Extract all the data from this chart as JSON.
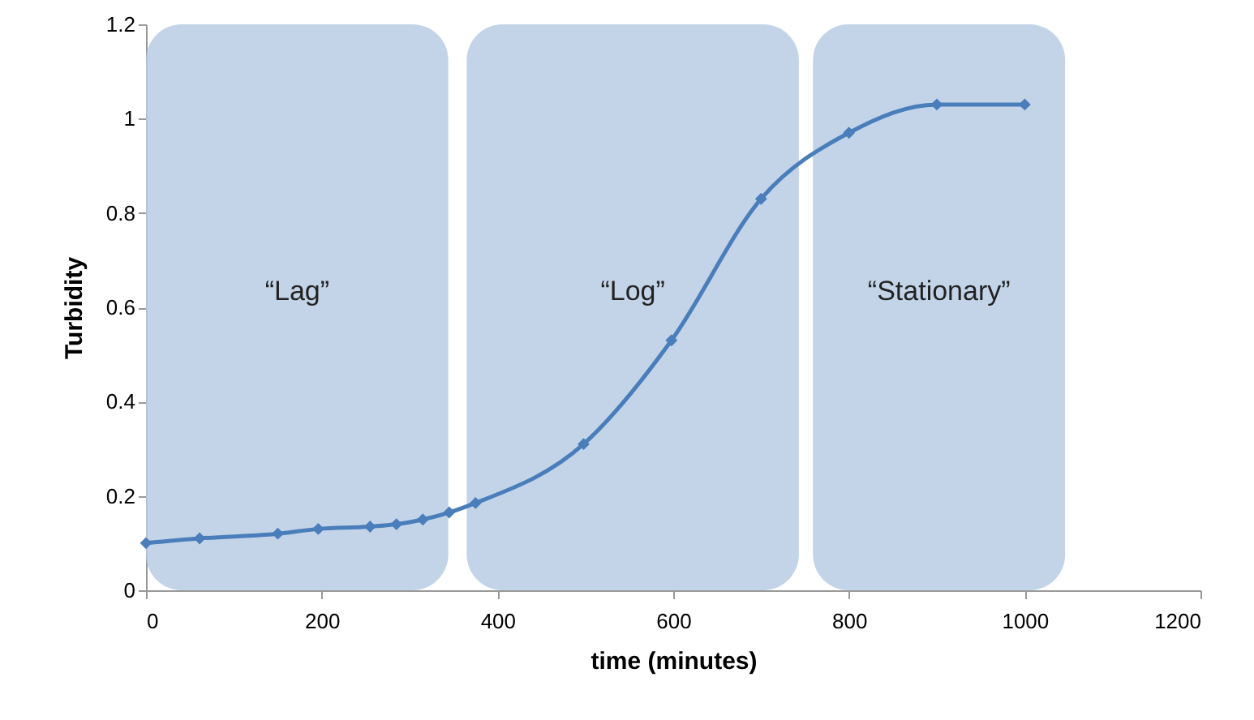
{
  "chart_data": {
    "type": "line",
    "xlabel": "time (minutes)",
    "ylabel": "Turbidity",
    "x": [
      0,
      61,
      150,
      196,
      255,
      285,
      315,
      345,
      375,
      498,
      598,
      700,
      800,
      900,
      1000
    ],
    "series": [
      {
        "color": "#4a7ebb",
        "values": [
          0.1,
          0.11,
          0.12,
          0.13,
          0.135,
          0.14,
          0.15,
          0.165,
          0.185,
          0.31,
          0.53,
          0.83,
          0.97,
          1.03,
          1.03
        ]
      }
    ],
    "xlim": [
      0,
      1200
    ],
    "xticks": [
      0,
      200,
      400,
      600,
      800,
      1000,
      1200
    ],
    "ylim": [
      0,
      1.2
    ],
    "yticks": [
      0,
      0.2,
      0.4,
      0.6,
      0.8,
      1,
      1.2
    ],
    "bands": [
      {
        "axis": "x",
        "from": 0,
        "to": 344,
        "label": "“Lag”",
        "color": "#b9cde5"
      },
      {
        "axis": "x",
        "from": 365,
        "to": 743,
        "label": "“Log”",
        "color": "#b9cde5"
      },
      {
        "axis": "x",
        "from": 759,
        "to": 1046,
        "label": "“Stationary”",
        "color": "#b9cde5"
      }
    ],
    "grid": false,
    "marker": "diamond",
    "line_style": "solid"
  }
}
